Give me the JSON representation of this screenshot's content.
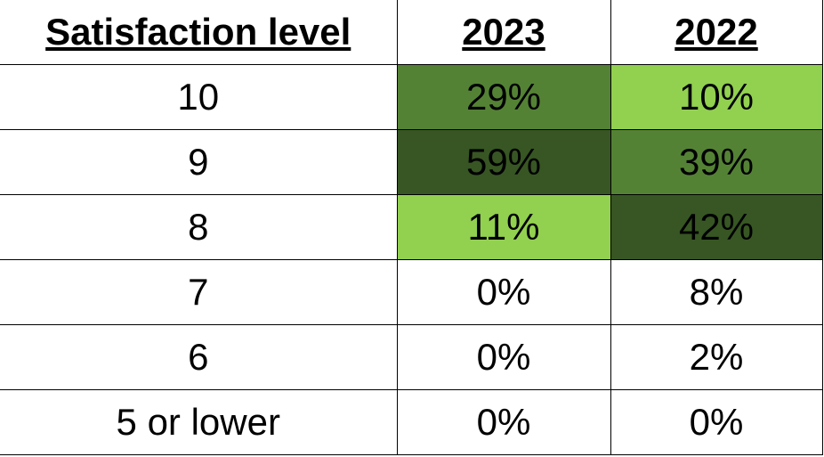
{
  "table": {
    "header": [
      "Satisfaction level",
      "2023",
      "2022"
    ],
    "rows": [
      [
        "10",
        "29%",
        "10%"
      ],
      [
        "9",
        "59%",
        "39%"
      ],
      [
        "8",
        "11%",
        "42%"
      ],
      [
        "7",
        "0%",
        "8%"
      ],
      [
        "6",
        "0%",
        "2%"
      ],
      [
        "5 or lower",
        "0%",
        "0%"
      ]
    ]
  }
}
